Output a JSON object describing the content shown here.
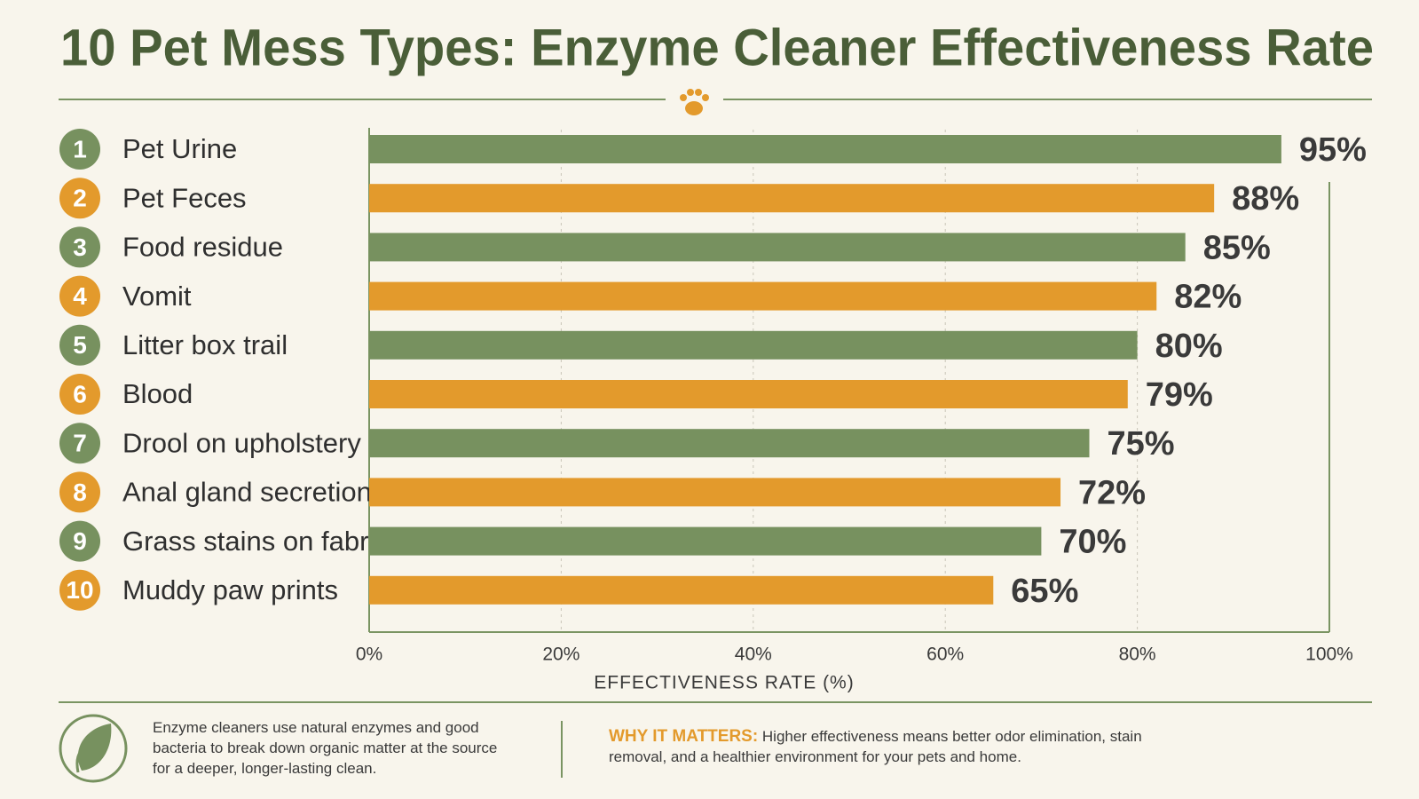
{
  "chart_data": {
    "type": "bar",
    "title": "10 Pet Mess Types: Enzyme Cleaner Effectiveness Rate",
    "ranks": [
      1,
      2,
      3,
      4,
      5,
      6,
      7,
      8,
      9,
      10
    ],
    "categories": [
      "Pet Urine",
      "Pet Feces",
      "Food residue",
      "Vomit",
      "Litter box trail",
      "Blood",
      "Drool on upholstery",
      "Anal gland secretions",
      "Grass stains on fabric",
      "Muddy paw prints"
    ],
    "values": [
      95,
      88,
      85,
      82,
      80,
      79,
      75,
      72,
      70,
      65
    ],
    "value_labels": [
      "95%",
      "88%",
      "85%",
      "82%",
      "80%",
      "79%",
      "75%",
      "72%",
      "70%",
      "65%"
    ],
    "colors": [
      "#77915f",
      "#e39a2c",
      "#77915f",
      "#e39a2c",
      "#77915f",
      "#e39a2c",
      "#77915f",
      "#e39a2c",
      "#77915f",
      "#e39a2c"
    ],
    "xlim": [
      0,
      100
    ],
    "xticks": [
      {
        "value": 0,
        "label": "0%"
      },
      {
        "value": 20,
        "label": "20%"
      },
      {
        "value": 40,
        "label": "40%"
      },
      {
        "value": 60,
        "label": "60%"
      },
      {
        "value": 80,
        "label": "80%"
      },
      {
        "value": 100,
        "label": "100%"
      }
    ],
    "x_label": "EFFECTIVENESS RATE (%)",
    "grid": true,
    "note": "Enzyme cleaners use natural enzymes and good bacteria to break down organic matter at the source for a deeper, longer-lasting clean.",
    "callout_heading": "WHY IT MATTERS:",
    "callout_text": "Higher effectiveness means better odor elimination, stain removal, and a healthier environment for your pets and home."
  }
}
